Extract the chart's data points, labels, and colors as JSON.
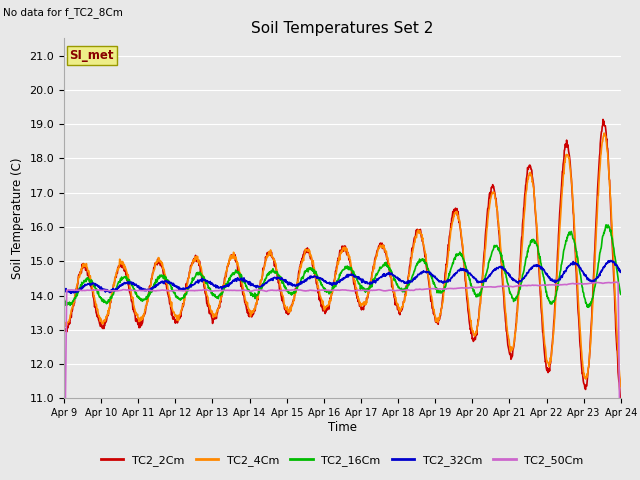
{
  "title": "Soil Temperatures Set 2",
  "subtitle": "No data for f_TC2_8Cm",
  "ylabel": "Soil Temperature (C)",
  "xlabel": "Time",
  "ylim": [
    11.0,
    21.5
  ],
  "yticks": [
    11.0,
    12.0,
    13.0,
    14.0,
    15.0,
    16.0,
    17.0,
    18.0,
    19.0,
    20.0,
    21.0
  ],
  "xtick_labels": [
    "Apr 9",
    "Apr 10",
    "Apr 11",
    "Apr 12",
    "Apr 13",
    "Apr 14",
    "Apr 15",
    "Apr 16",
    "Apr 17",
    "Apr 18",
    "Apr 19",
    "Apr 20",
    "Apr 21",
    "Apr 22",
    "Apr 23",
    "Apr 24"
  ],
  "bg_color": "#e8e8e8",
  "plot_bg_color": "#e8e8e8",
  "grid_color": "#ffffff",
  "series": {
    "TC2_2Cm": {
      "color": "#cc0000",
      "lw": 1.2
    },
    "TC2_4Cm": {
      "color": "#ff8800",
      "lw": 1.2
    },
    "TC2_16Cm": {
      "color": "#00bb00",
      "lw": 1.2
    },
    "TC2_32Cm": {
      "color": "#0000cc",
      "lw": 1.2
    },
    "TC2_50Cm": {
      "color": "#cc66cc",
      "lw": 1.2
    }
  },
  "legend_box_color": "#eeee88",
  "legend_box_text": "SI_met",
  "legend_box_text_color": "#880000"
}
